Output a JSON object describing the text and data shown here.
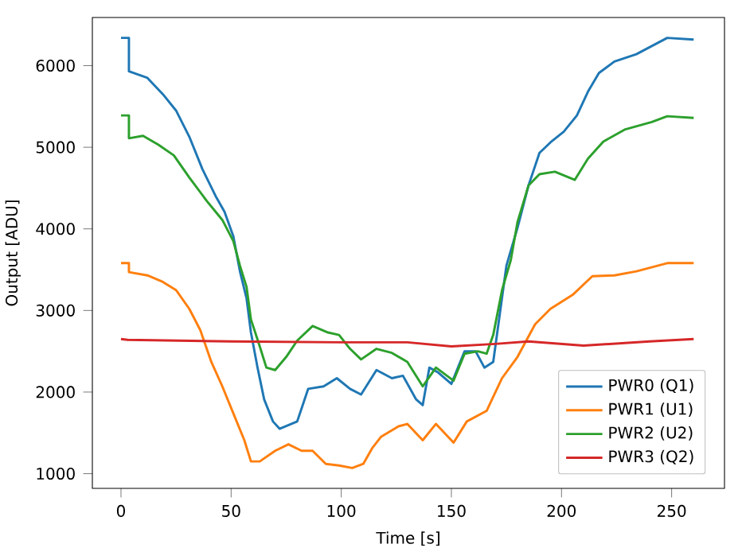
{
  "chart_data": {
    "type": "line",
    "xlabel": "Time [s]",
    "ylabel": "Output [ADU]",
    "xlim": [
      -13,
      274
    ],
    "ylim": [
      820,
      6590
    ],
    "xticks": [
      0,
      50,
      100,
      150,
      200,
      250
    ],
    "yticks": [
      1000,
      2000,
      3000,
      4000,
      5000,
      6000
    ],
    "legend": "bottom right",
    "grid": false,
    "marker": "none",
    "line_style": "solid",
    "series": [
      {
        "name": "PWR0 (Q1)",
        "color": "#1f77b4",
        "x": [
          0,
          3.6,
          3.6,
          12,
          19,
          25,
          31,
          37,
          43,
          47,
          51,
          54,
          57,
          59,
          62,
          65,
          69,
          72,
          80,
          85,
          92,
          98,
          104,
          109,
          116,
          123,
          128,
          134,
          137,
          140,
          144,
          150,
          156,
          161,
          165,
          169,
          172,
          175,
          180,
          185,
          190,
          195,
          201,
          207,
          212,
          217,
          224,
          234,
          241,
          248,
          260
        ],
        "values": [
          6340,
          6340,
          5930,
          5850,
          5650,
          5450,
          5130,
          4730,
          4400,
          4210,
          3910,
          3480,
          3150,
          2730,
          2300,
          1910,
          1640,
          1550,
          1640,
          2040,
          2070,
          2170,
          2040,
          1970,
          2270,
          2170,
          2200,
          1910,
          1840,
          2300,
          2240,
          2100,
          2500,
          2500,
          2300,
          2370,
          2960,
          3550,
          4010,
          4530,
          4930,
          5060,
          5190,
          5390,
          5680,
          5910,
          6050,
          6140,
          6240,
          6340,
          6320
        ]
      },
      {
        "name": "PWR1 (U1)",
        "color": "#ff7f0e",
        "x": [
          0,
          3.6,
          3.6,
          12,
          19,
          25,
          31,
          36,
          41,
          46,
          51,
          56,
          59,
          63,
          70,
          76,
          82,
          87,
          93,
          99,
          105,
          110,
          114,
          118,
          126,
          130,
          137,
          143,
          151,
          157,
          166,
          173,
          180,
          188,
          195,
          205,
          214,
          224,
          234,
          248,
          260
        ],
        "values": [
          3580,
          3580,
          3470,
          3430,
          3350,
          3250,
          3020,
          2760,
          2370,
          2070,
          1740,
          1410,
          1150,
          1150,
          1280,
          1360,
          1280,
          1280,
          1120,
          1100,
          1070,
          1120,
          1310,
          1450,
          1580,
          1610,
          1410,
          1610,
          1380,
          1640,
          1770,
          2170,
          2430,
          2830,
          3020,
          3190,
          3420,
          3430,
          3480,
          3580,
          3580
        ]
      },
      {
        "name": "PWR2 (U2)",
        "color": "#2ca02c",
        "x": [
          0,
          3.6,
          3.6,
          10,
          17,
          24,
          31,
          39,
          46,
          51,
          54,
          57,
          59,
          63,
          66,
          70,
          75,
          80,
          87,
          94,
          99,
          104,
          109,
          116,
          123,
          130,
          137,
          143,
          151,
          156,
          162,
          166,
          169,
          173,
          177,
          180,
          185,
          190,
          197,
          206,
          212,
          219,
          229,
          241,
          248,
          260
        ],
        "values": [
          5390,
          5390,
          5110,
          5140,
          5030,
          4900,
          4630,
          4340,
          4110,
          3850,
          3550,
          3290,
          2890,
          2560,
          2300,
          2270,
          2430,
          2630,
          2810,
          2730,
          2700,
          2530,
          2400,
          2530,
          2480,
          2370,
          2070,
          2300,
          2140,
          2470,
          2500,
          2470,
          2700,
          3250,
          3620,
          4080,
          4530,
          4670,
          4700,
          4600,
          4860,
          5070,
          5220,
          5310,
          5380,
          5360
        ]
      },
      {
        "name": "PWR3 (Q2)",
        "color": "#d62728",
        "x": [
          0,
          3,
          50,
          100,
          130,
          150,
          170,
          185,
          210,
          240,
          260
        ],
        "values": [
          2650,
          2640,
          2620,
          2610,
          2610,
          2560,
          2590,
          2620,
          2570,
          2620,
          2650
        ]
      }
    ]
  }
}
